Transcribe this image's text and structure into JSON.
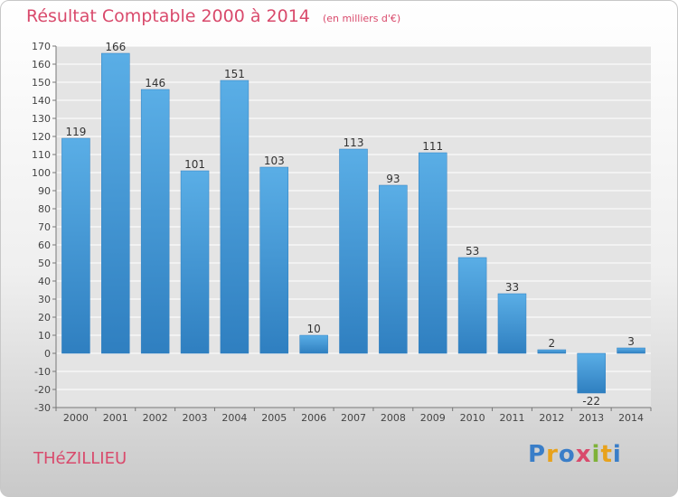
{
  "header": {
    "title": "Résultat Comptable 2000 à 2014",
    "unit": "(en milliers d'€)"
  },
  "footer": {
    "commune": "THéZILLIEU",
    "logo": "Proxiti",
    "logo_colors": [
      "#3a7ec8",
      "#e8a21c",
      "#3a7ec8",
      "#d94a6c",
      "#7fb239",
      "#e8a21c",
      "#3a7ec8"
    ]
  },
  "colors": {
    "title": "#d94a6c",
    "bar_light": "#5aaee6",
    "bar_dark": "#2f7fc0",
    "grid": "#ffffff",
    "axis_text": "#444444"
  },
  "chart_data": {
    "type": "bar",
    "categories": [
      "2000",
      "2001",
      "2002",
      "2003",
      "2004",
      "2005",
      "2006",
      "2007",
      "2008",
      "2009",
      "2010",
      "2011",
      "2012",
      "2013",
      "2014"
    ],
    "values": [
      119,
      166,
      146,
      101,
      151,
      103,
      10,
      113,
      93,
      111,
      53,
      33,
      2,
      -22,
      3
    ],
    "ylim": [
      -30,
      170
    ],
    "yticks": [
      -30,
      -20,
      -10,
      0,
      10,
      20,
      30,
      40,
      50,
      60,
      70,
      80,
      90,
      100,
      110,
      120,
      130,
      140,
      150,
      160,
      170
    ],
    "grid": true
  }
}
